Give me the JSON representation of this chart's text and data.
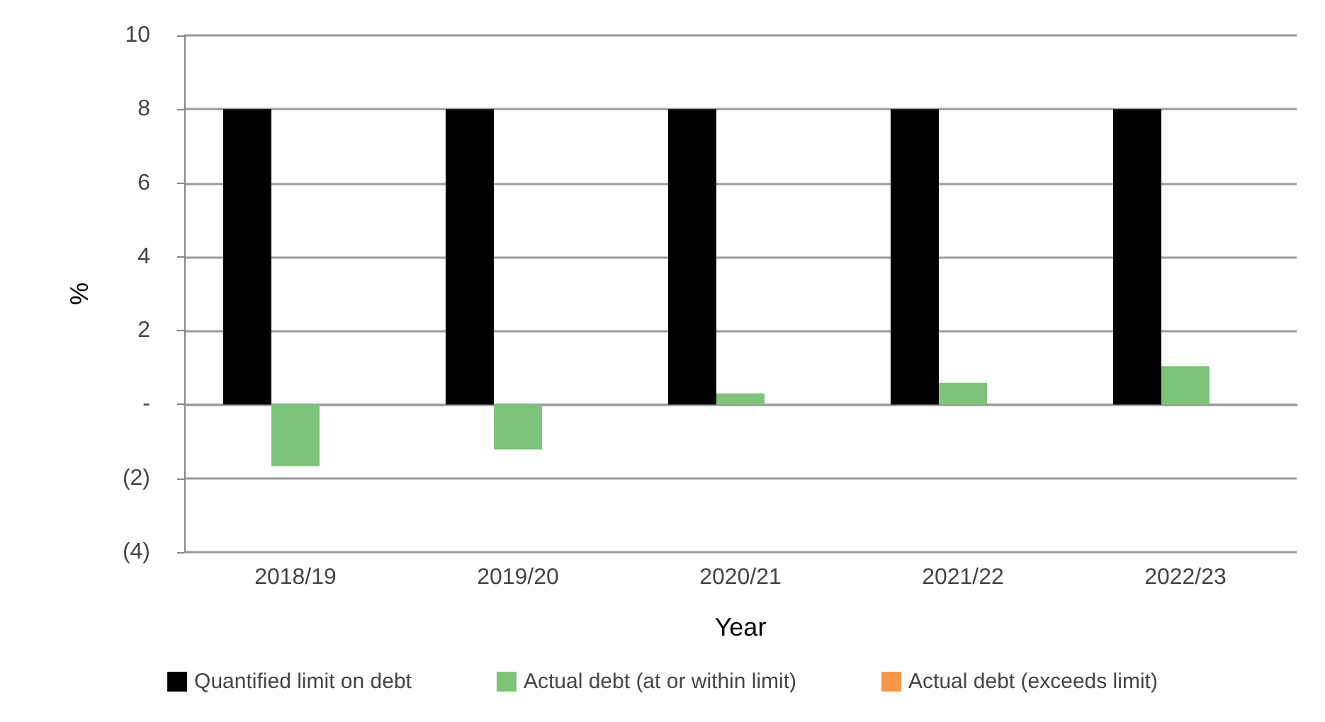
{
  "chart_data": {
    "type": "bar",
    "xlabel": "Year",
    "ylabel": "%",
    "categories": [
      "2018/19",
      "2019/20",
      "2020/21",
      "2021/22",
      "2022/23"
    ],
    "series": [
      {
        "name": "Quantified limit on debt",
        "color": "#000000",
        "values": [
          8,
          8,
          8,
          8,
          8
        ]
      },
      {
        "name": "Actual debt (at or within limit)",
        "color": "#7dc47a",
        "values": [
          -1.67,
          -1.22,
          0.3,
          0.59,
          1.04
        ]
      },
      {
        "name": "Actual debt (exceeds limit)",
        "color": "#f79646",
        "values": [
          null,
          null,
          null,
          null,
          null
        ]
      }
    ],
    "ylim": [
      -4,
      10
    ],
    "yticks": [
      {
        "value": -4,
        "label": "(4)"
      },
      {
        "value": -2,
        "label": "(2)"
      },
      {
        "value": 0,
        "label": "-"
      },
      2,
      4,
      6,
      8,
      10
    ],
    "grid": "y",
    "legend": "bottom"
  }
}
